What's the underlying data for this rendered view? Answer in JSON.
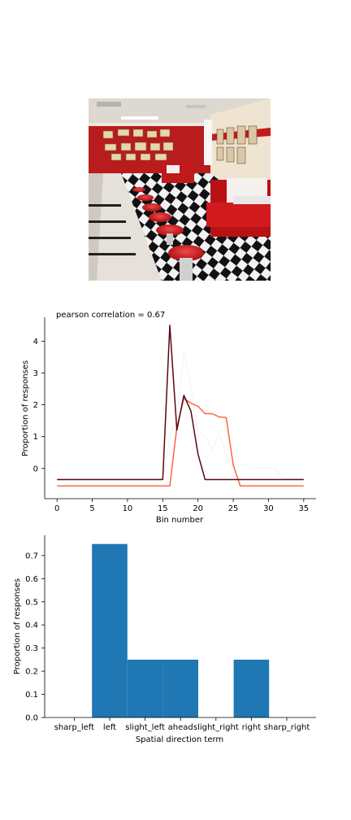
{
  "image": {
    "subject": "retro-diner-interior-photo"
  },
  "chart_data": [
    {
      "type": "line",
      "title": "pearson correlation = 0.67",
      "xlabel": "Bin number",
      "ylabel": "Proportion of responses",
      "xlim": [
        -1.75,
        36.75
      ],
      "ylim": [
        -0.95,
        4.75
      ],
      "xticks": [
        "0",
        "5",
        "10",
        "15",
        "20",
        "25",
        "30",
        "35"
      ],
      "yticks": [
        "0",
        "1",
        "2",
        "3",
        "4"
      ],
      "x": [
        0,
        1,
        2,
        3,
        4,
        5,
        6,
        7,
        8,
        9,
        10,
        11,
        12,
        13,
        14,
        15,
        16,
        17,
        18,
        19,
        20,
        21,
        22,
        23,
        24,
        25,
        26,
        27,
        28,
        29,
        30,
        31,
        32,
        33,
        34,
        35
      ],
      "series": [
        {
          "color": "#f4f0ee",
          "opacity": 0.9,
          "width": 1,
          "values": [
            -0.33,
            -0.33,
            -0.33,
            -0.33,
            -0.33,
            -0.33,
            -0.33,
            -0.33,
            -0.33,
            -0.33,
            -0.33,
            -0.33,
            -0.33,
            -0.33,
            -0.33,
            -0.33,
            1.0,
            1.6,
            3.6,
            2.6,
            1.2,
            1.0,
            0.6,
            1.1,
            0.4,
            0.1,
            0.1,
            0.1,
            0.0,
            0.0,
            0.0,
            0.0,
            -0.33,
            -0.33,
            -0.33,
            -0.33
          ]
        },
        {
          "color": "#ff6347",
          "opacity": 1,
          "width": 1.5,
          "values": [
            -0.55,
            -0.55,
            -0.55,
            -0.55,
            -0.55,
            -0.55,
            -0.55,
            -0.55,
            -0.55,
            -0.55,
            -0.55,
            -0.55,
            -0.55,
            -0.55,
            -0.55,
            -0.55,
            -0.55,
            1.3,
            2.2,
            2.05,
            1.95,
            1.72,
            1.72,
            1.62,
            1.6,
            0.1,
            -0.55,
            -0.55,
            -0.55,
            -0.55,
            -0.55,
            -0.55,
            -0.55,
            -0.55,
            -0.55,
            -0.55
          ]
        },
        {
          "color": "#5a0812",
          "opacity": 1,
          "width": 1.5,
          "values": [
            -0.35,
            -0.35,
            -0.35,
            -0.35,
            -0.35,
            -0.35,
            -0.35,
            -0.35,
            -0.35,
            -0.35,
            -0.35,
            -0.35,
            -0.35,
            -0.35,
            -0.35,
            -0.35,
            4.5,
            1.2,
            2.3,
            1.8,
            0.45,
            -0.35,
            -0.35,
            -0.35,
            -0.35,
            -0.35,
            -0.35,
            -0.35,
            -0.35,
            -0.35,
            -0.35,
            -0.35,
            -0.35,
            -0.35,
            -0.35,
            -0.35
          ]
        }
      ]
    },
    {
      "type": "bar",
      "xlabel": "Spatial direction term",
      "ylabel": "Proportion of responses",
      "categories": [
        "sharp_left",
        "left",
        "slight_left",
        "ahead",
        "slight_right",
        "right",
        "sharp_right"
      ],
      "values": [
        0,
        0.75,
        0.25,
        0.25,
        0,
        0.25,
        0
      ],
      "ylim": [
        0,
        0.7875
      ],
      "yticks": [
        "0.0",
        "0.1",
        "0.2",
        "0.3",
        "0.4",
        "0.5",
        "0.6",
        "0.7"
      ],
      "color": "#1f77b4"
    }
  ]
}
